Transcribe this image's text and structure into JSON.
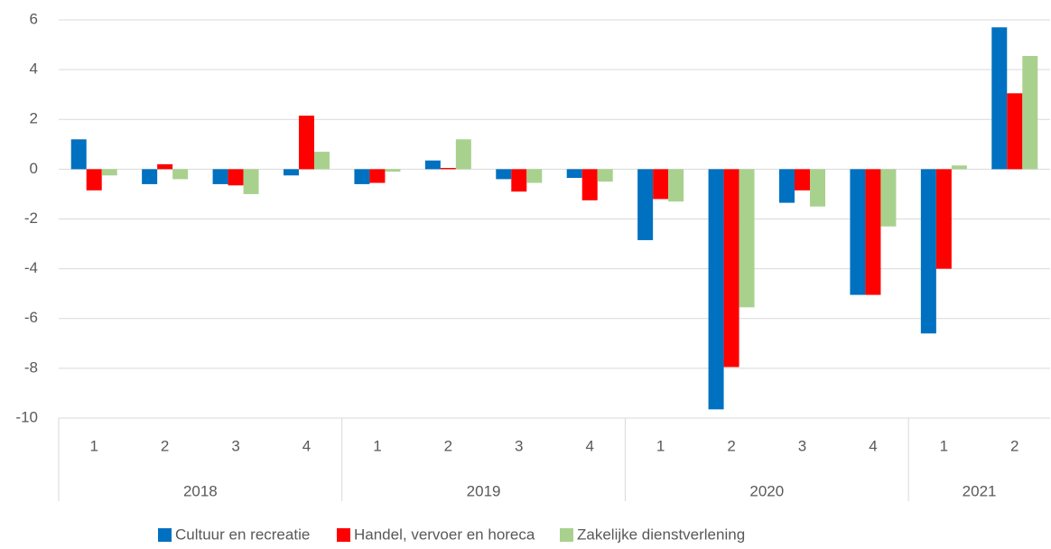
{
  "chart_data": {
    "type": "bar",
    "categories": [
      "1",
      "2",
      "3",
      "4",
      "1",
      "2",
      "3",
      "4",
      "1",
      "2",
      "3",
      "4",
      "1",
      "2"
    ],
    "category_groups": [
      {
        "name": "2018",
        "size": 4
      },
      {
        "name": "2019",
        "size": 4
      },
      {
        "name": "2020",
        "size": 4
      },
      {
        "name": "2021",
        "size": 2
      }
    ],
    "series": [
      {
        "name": "Cultuur en recreatie",
        "color": "#0070c0",
        "values": [
          1.2,
          -0.6,
          -0.6,
          -0.25,
          -0.6,
          0.35,
          -0.4,
          -0.35,
          -2.85,
          -9.65,
          -1.35,
          -5.05,
          -6.6,
          5.7
        ]
      },
      {
        "name": "Handel, vervoer en horeca",
        "color": "#ff0000",
        "values": [
          -0.85,
          0.2,
          -0.65,
          2.15,
          -0.55,
          0.05,
          -0.9,
          -1.25,
          -1.2,
          -7.95,
          -0.85,
          -5.05,
          -4.0,
          3.05
        ]
      },
      {
        "name": "Zakelijke dienstverlening",
        "color": "#a9d18e",
        "values": [
          -0.25,
          -0.4,
          -1.0,
          0.7,
          -0.1,
          1.2,
          -0.55,
          -0.5,
          -1.3,
          -5.55,
          -1.5,
          -2.3,
          0.15,
          4.55
        ]
      }
    ],
    "ylim": [
      -10,
      6
    ],
    "yticks": [
      -10,
      -8,
      -6,
      -4,
      -2,
      0,
      2,
      4,
      6
    ],
    "grid": true,
    "legend": "bottom"
  }
}
